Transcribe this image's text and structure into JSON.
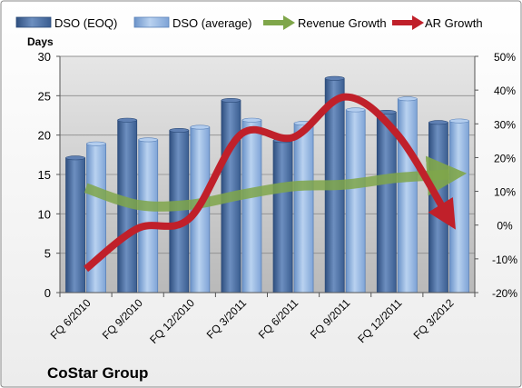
{
  "chart_data": {
    "type": "bar",
    "title": "CoStar Group",
    "ylabel": "Days",
    "categories": [
      "FQ 6/2010",
      "FQ 9/2010",
      "FQ 12/2010",
      "FQ 3/2011",
      "FQ 6/2011",
      "FQ 9/2011",
      "FQ 12/2011",
      "FQ 3/2012"
    ],
    "ylim": [
      0,
      30
    ],
    "y_ticks": [
      "0",
      "5",
      "10",
      "15",
      "20",
      "25",
      "30"
    ],
    "y2lim": [
      -20,
      50
    ],
    "y2_ticks": [
      "-20%",
      "-10%",
      "0%",
      "10%",
      "20%",
      "30%",
      "40%",
      "50%"
    ],
    "grid": true,
    "legend_position": "top",
    "series": [
      {
        "name": "DSO (EOQ)",
        "type": "bar",
        "axis": "left",
        "color": "#4a6fa5",
        "values": [
          17.1,
          21.9,
          20.6,
          24.4,
          19.3,
          27.2,
          22.9,
          21.6
        ]
      },
      {
        "name": "DSO (average)",
        "type": "bar",
        "axis": "left",
        "color": "#8fb3e0",
        "values": [
          18.9,
          19.4,
          21.0,
          21.9,
          21.5,
          23.2,
          24.6,
          21.8
        ]
      },
      {
        "name": "Revenue Growth",
        "type": "line",
        "axis": "right",
        "color": "#7fa64a",
        "values": [
          11,
          6,
          6,
          9,
          11.5,
          12,
          14,
          15
        ]
      },
      {
        "name": "AR Growth",
        "type": "line",
        "axis": "right",
        "color": "#c0202a",
        "values": [
          -13,
          -1,
          2,
          27,
          26,
          38,
          27,
          2
        ]
      }
    ]
  }
}
